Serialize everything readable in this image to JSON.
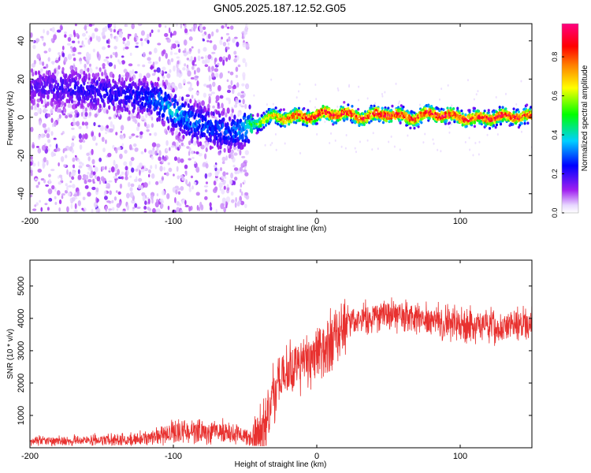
{
  "title": "GN05.2025.187.12.52.G05",
  "chart_data": [
    {
      "type": "heatmap",
      "xlabel": "Height of straight line (km)",
      "ylabel": "Frequency (Hz)",
      "xlim": [
        -200,
        150
      ],
      "ylim": [
        -50,
        49
      ],
      "x_ticks": [
        "-200",
        "-100",
        "0",
        "100"
      ],
      "y_ticks": [
        "-40",
        "-20",
        "0",
        "20",
        "40"
      ],
      "colorbar": {
        "label": "Normalized spectral amplitude",
        "range": [
          0,
          0.97
        ],
        "ticks": [
          "0.0",
          "0.2",
          "0.4",
          "0.6",
          "0.8"
        ],
        "colors": [
          "#ffffff",
          "#a020f0",
          "#0000ff",
          "#00ffff",
          "#00ff00",
          "#ffff00",
          "#ff7f00",
          "#ff0000",
          "#ff0080"
        ]
      },
      "ridge": [
        {
          "x": -200,
          "y": 16,
          "amp": 0.12
        },
        {
          "x": -180,
          "y": 15,
          "amp": 0.16
        },
        {
          "x": -160,
          "y": 14,
          "amp": 0.18
        },
        {
          "x": -140,
          "y": 12,
          "amp": 0.18
        },
        {
          "x": -120,
          "y": 10,
          "amp": 0.22
        },
        {
          "x": -110,
          "y": 8,
          "amp": 0.3
        },
        {
          "x": -100,
          "y": 3,
          "amp": 0.35
        },
        {
          "x": -90,
          "y": -1,
          "amp": 0.3
        },
        {
          "x": -80,
          "y": -4,
          "amp": 0.25
        },
        {
          "x": -70,
          "y": -6,
          "amp": 0.25
        },
        {
          "x": -60,
          "y": -8,
          "amp": 0.25
        },
        {
          "x": -50,
          "y": -5,
          "amp": 0.35
        },
        {
          "x": -45,
          "y": -3,
          "amp": 0.45
        },
        {
          "x": -40,
          "y": -2,
          "amp": 0.55
        },
        {
          "x": -30,
          "y": 0,
          "amp": 0.7
        },
        {
          "x": -20,
          "y": 0,
          "amp": 0.8
        },
        {
          "x": -10,
          "y": 0,
          "amp": 0.85
        },
        {
          "x": 0,
          "y": 1,
          "amp": 0.9
        },
        {
          "x": 10,
          "y": 2,
          "amp": 0.9
        },
        {
          "x": 20,
          "y": 2,
          "amp": 0.9
        },
        {
          "x": 30,
          "y": 0,
          "amp": 0.85
        },
        {
          "x": 40,
          "y": 1,
          "amp": 0.9
        },
        {
          "x": 50,
          "y": 2,
          "amp": 0.9
        },
        {
          "x": 60,
          "y": 0,
          "amp": 0.85
        },
        {
          "x": 70,
          "y": 0,
          "amp": 0.85
        },
        {
          "x": 80,
          "y": 2,
          "amp": 0.9
        },
        {
          "x": 90,
          "y": 1,
          "amp": 0.9
        },
        {
          "x": 100,
          "y": 0,
          "amp": 0.85
        },
        {
          "x": 110,
          "y": -1,
          "amp": 0.85
        },
        {
          "x": 120,
          "y": 0,
          "amp": 0.9
        },
        {
          "x": 130,
          "y": 0,
          "amp": 0.9
        },
        {
          "x": 140,
          "y": 1,
          "amp": 0.85
        },
        {
          "x": 150,
          "y": 0,
          "amp": 0.8
        }
      ]
    },
    {
      "type": "line",
      "xlabel": "Height of straight line (km)",
      "ylabel": "SNR (10 * v/v)",
      "xlim": [
        -200,
        150
      ],
      "ylim": [
        0,
        5800
      ],
      "x_ticks": [
        "-200",
        "-100",
        "0",
        "100"
      ],
      "y_ticks": [
        "1000",
        "2000",
        "3000",
        "4000",
        "5000"
      ],
      "color": "#e8312f",
      "series": [
        {
          "name": "",
          "x": [
            -200,
            -190,
            -180,
            -170,
            -160,
            -150,
            -140,
            -130,
            -120,
            -110,
            -100,
            -90,
            -80,
            -70,
            -60,
            -50,
            -45,
            -40,
            -35,
            -30,
            -25,
            -20,
            -15,
            -10,
            -5,
            0,
            5,
            10,
            15,
            20,
            25,
            30,
            40,
            50,
            60,
            70,
            80,
            90,
            100,
            110,
            120,
            130,
            140,
            150
          ],
          "y": [
            200,
            200,
            220,
            220,
            230,
            230,
            240,
            260,
            320,
            420,
            480,
            520,
            520,
            480,
            420,
            350,
            300,
            320,
            900,
            1700,
            2100,
            2300,
            2400,
            2600,
            2700,
            2800,
            3000,
            3300,
            3600,
            3800,
            3900,
            4000,
            4050,
            4100,
            4050,
            3950,
            3900,
            3850,
            3850,
            3800,
            3750,
            3750,
            3800,
            3900
          ]
        }
      ]
    }
  ]
}
